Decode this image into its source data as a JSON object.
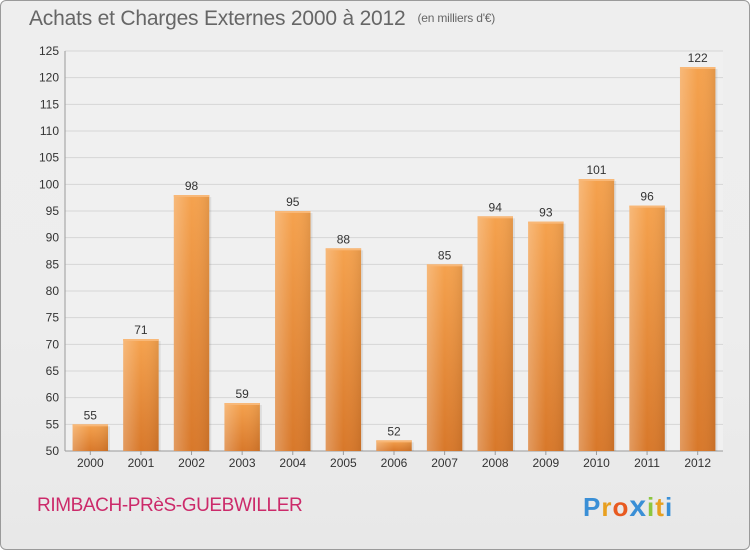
{
  "header": {
    "title": "Achats et Charges Externes 2000 à 2012",
    "subtitle": "(en milliers d'€)"
  },
  "footer": {
    "commune": "RIMBACH-PRèS-GUEBWILLER",
    "logo_text": "Proxiti"
  },
  "colors": {
    "bar_light": "#f5a24e",
    "bar_dark": "#d8782a",
    "commune_text": "#cc2a6a",
    "grid": "#d6d6d6"
  },
  "chart_data": {
    "type": "bar",
    "title": "Achats et Charges Externes 2000 à 2012",
    "subtitle": "(en milliers d'€)",
    "categories": [
      "2000",
      "2001",
      "2002",
      "2003",
      "2004",
      "2005",
      "2006",
      "2007",
      "2008",
      "2009",
      "2010",
      "2011",
      "2012"
    ],
    "values": [
      55,
      71,
      98,
      59,
      95,
      88,
      52,
      85,
      94,
      93,
      101,
      96,
      122
    ],
    "xlabel": "",
    "ylabel": "",
    "ylim": [
      50,
      125
    ],
    "yticks": [
      50,
      55,
      60,
      65,
      70,
      75,
      80,
      85,
      90,
      95,
      100,
      105,
      110,
      115,
      120,
      125
    ],
    "grid": true,
    "legend": "none"
  }
}
